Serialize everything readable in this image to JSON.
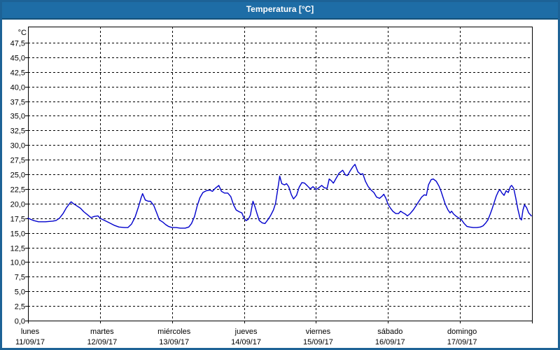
{
  "title": "Temperatura [°C]",
  "theme": {
    "titlebar_bg": "#1e6da6",
    "titlebar_edge": "#155179",
    "window_border": "#1d6296",
    "background": "#ffffff",
    "plot_border": "#000000",
    "grid_color": "#000000",
    "text_color": "#000000",
    "line_color": "#0000cc"
  },
  "chart_data": {
    "type": "line",
    "title": "Temperatura [°C]",
    "ylabel_unit": "°C",
    "ylim": [
      0,
      50
    ],
    "ytick_step": 2.5,
    "ytick_labels": [
      "0,0",
      "2,5",
      "5,0",
      "7,5",
      "10,0",
      "12,5",
      "15,0",
      "17,5",
      "20,0",
      "22,5",
      "25,0",
      "27,5",
      "30,0",
      "32,5",
      "35,0",
      "37,5",
      "40,0",
      "42,5",
      "45,0",
      "47,5"
    ],
    "grid": true,
    "legend": "none",
    "x_unit": "hours_from_monday_00h",
    "xlim": [
      0,
      168
    ],
    "days": [
      {
        "name": "lunes",
        "date": "11/09/17"
      },
      {
        "name": "martes",
        "date": "12/09/17"
      },
      {
        "name": "miércoles",
        "date": "13/09/17"
      },
      {
        "name": "jueves",
        "date": "14/09/17"
      },
      {
        "name": "viernes",
        "date": "15/09/17"
      },
      {
        "name": "sábado",
        "date": "16/09/17"
      },
      {
        "name": "domingo",
        "date": "17/09/17"
      }
    ],
    "series": [
      {
        "name": "Temperatura",
        "color": "#0000cc",
        "points": [
          [
            0,
            17.5
          ],
          [
            1.9,
            17.1
          ],
          [
            3.5,
            16.9
          ],
          [
            5.8,
            16.9
          ],
          [
            8.2,
            17.0
          ],
          [
            9.3,
            17.1
          ],
          [
            10.5,
            17.5
          ],
          [
            11.7,
            18.3
          ],
          [
            12.8,
            19.3
          ],
          [
            14.0,
            20.1
          ],
          [
            14.4,
            20.3
          ],
          [
            15.1,
            20.0
          ],
          [
            16.3,
            19.6
          ],
          [
            17.5,
            19.2
          ],
          [
            18.6,
            18.6
          ],
          [
            19.8,
            18.1
          ],
          [
            21.0,
            17.6
          ],
          [
            22.1,
            17.8
          ],
          [
            23.3,
            17.9
          ],
          [
            24.0,
            17.5
          ],
          [
            25.2,
            17.2
          ],
          [
            26.8,
            16.8
          ],
          [
            28.7,
            16.3
          ],
          [
            30.3,
            16.0
          ],
          [
            32.2,
            15.9
          ],
          [
            33.3,
            15.9
          ],
          [
            34.5,
            16.5
          ],
          [
            35.7,
            17.7
          ],
          [
            36.8,
            19.4
          ],
          [
            37.7,
            21.0
          ],
          [
            38.2,
            21.7
          ],
          [
            39.1,
            20.6
          ],
          [
            40.1,
            20.4
          ],
          [
            40.8,
            20.4
          ],
          [
            41.9,
            19.7
          ],
          [
            42.9,
            18.4
          ],
          [
            43.8,
            17.2
          ],
          [
            45.0,
            16.8
          ],
          [
            45.9,
            16.4
          ],
          [
            46.8,
            16.1
          ],
          [
            48.0,
            15.9
          ],
          [
            49.4,
            15.9
          ],
          [
            50.8,
            15.8
          ],
          [
            52.4,
            15.8
          ],
          [
            53.6,
            16.0
          ],
          [
            54.5,
            16.6
          ],
          [
            55.5,
            17.8
          ],
          [
            56.4,
            19.6
          ],
          [
            57.3,
            21.0
          ],
          [
            58.3,
            21.9
          ],
          [
            59.4,
            22.2
          ],
          [
            60.6,
            22.3
          ],
          [
            61.5,
            22.1
          ],
          [
            62.4,
            22.6
          ],
          [
            63.6,
            23.1
          ],
          [
            64.5,
            22.1
          ],
          [
            65.5,
            21.8
          ],
          [
            66.6,
            21.8
          ],
          [
            67.6,
            21.2
          ],
          [
            68.5,
            19.8
          ],
          [
            69.4,
            18.9
          ],
          [
            70.4,
            18.6
          ],
          [
            71.3,
            18.4
          ],
          [
            72.0,
            17.5
          ],
          [
            72.7,
            17.1
          ],
          [
            73.4,
            17.3
          ],
          [
            74.1,
            18.0
          ],
          [
            75.0,
            20.4
          ],
          [
            75.7,
            19.4
          ],
          [
            76.4,
            18.2
          ],
          [
            77.1,
            17.1
          ],
          [
            78.1,
            16.7
          ],
          [
            79.0,
            16.6
          ],
          [
            79.9,
            17.2
          ],
          [
            80.8,
            17.9
          ],
          [
            81.8,
            18.9
          ],
          [
            82.5,
            20.0
          ],
          [
            83.2,
            22.3
          ],
          [
            83.9,
            24.7
          ],
          [
            84.6,
            23.4
          ],
          [
            85.5,
            23.2
          ],
          [
            86.2,
            23.4
          ],
          [
            86.9,
            22.9
          ],
          [
            87.8,
            21.5
          ],
          [
            88.5,
            20.8
          ],
          [
            89.5,
            21.4
          ],
          [
            90.4,
            22.8
          ],
          [
            91.3,
            23.6
          ],
          [
            92.2,
            23.5
          ],
          [
            93.2,
            23.0
          ],
          [
            94.1,
            22.5
          ],
          [
            95.0,
            22.9
          ],
          [
            96.0,
            22.4
          ],
          [
            96.9,
            22.7
          ],
          [
            97.9,
            23.1
          ],
          [
            98.8,
            22.7
          ],
          [
            99.7,
            22.6
          ],
          [
            100.4,
            24.2
          ],
          [
            101.1,
            23.9
          ],
          [
            101.8,
            23.5
          ],
          [
            102.7,
            24.3
          ],
          [
            103.7,
            25.2
          ],
          [
            104.9,
            25.7
          ],
          [
            105.8,
            24.9
          ],
          [
            106.5,
            24.8
          ],
          [
            107.4,
            25.6
          ],
          [
            108.3,
            26.3
          ],
          [
            109.0,
            26.7
          ],
          [
            110.0,
            25.4
          ],
          [
            110.9,
            25.0
          ],
          [
            111.6,
            25.1
          ],
          [
            112.5,
            23.8
          ],
          [
            113.4,
            22.9
          ],
          [
            114.4,
            22.3
          ],
          [
            115.3,
            21.9
          ],
          [
            116.2,
            21.1
          ],
          [
            117.2,
            20.9
          ],
          [
            118.1,
            21.3
          ],
          [
            118.6,
            21.6
          ],
          [
            119.3,
            20.9
          ],
          [
            120.0,
            19.9
          ],
          [
            120.7,
            19.3
          ],
          [
            121.6,
            18.7
          ],
          [
            122.6,
            18.3
          ],
          [
            123.5,
            18.3
          ],
          [
            124.2,
            18.7
          ],
          [
            125.1,
            18.4
          ],
          [
            125.8,
            18.2
          ],
          [
            126.5,
            17.9
          ],
          [
            127.4,
            18.3
          ],
          [
            128.4,
            18.9
          ],
          [
            129.3,
            19.6
          ],
          [
            130.2,
            20.3
          ],
          [
            131.2,
            21.1
          ],
          [
            132.1,
            21.5
          ],
          [
            132.8,
            21.4
          ],
          [
            133.5,
            23.2
          ],
          [
            134.4,
            24.1
          ],
          [
            135.1,
            24.2
          ],
          [
            136.1,
            23.8
          ],
          [
            137.0,
            23.0
          ],
          [
            137.7,
            22.1
          ],
          [
            138.4,
            21.0
          ],
          [
            139.1,
            19.9
          ],
          [
            140.0,
            18.9
          ],
          [
            140.7,
            18.4
          ],
          [
            141.2,
            18.7
          ],
          [
            141.9,
            18.2
          ],
          [
            142.8,
            17.8
          ],
          [
            144.0,
            17.4
          ],
          [
            144.7,
            17.1
          ],
          [
            145.4,
            16.6
          ],
          [
            146.3,
            16.1
          ],
          [
            147.2,
            16.0
          ],
          [
            148.4,
            15.9
          ],
          [
            149.6,
            15.9
          ],
          [
            150.8,
            16.0
          ],
          [
            151.7,
            16.2
          ],
          [
            152.6,
            16.7
          ],
          [
            153.3,
            17.2
          ],
          [
            154.0,
            18.1
          ],
          [
            154.7,
            19.1
          ],
          [
            155.4,
            20.2
          ],
          [
            156.1,
            21.3
          ],
          [
            156.8,
            22.1
          ],
          [
            157.3,
            22.4
          ],
          [
            158.0,
            21.8
          ],
          [
            158.7,
            21.4
          ],
          [
            159.4,
            22.2
          ],
          [
            160.1,
            21.9
          ],
          [
            160.8,
            22.9
          ],
          [
            161.2,
            23.1
          ],
          [
            161.9,
            22.6
          ],
          [
            162.6,
            20.9
          ],
          [
            163.3,
            19.0
          ],
          [
            164.0,
            17.5
          ],
          [
            164.5,
            17.2
          ],
          [
            165.0,
            18.9
          ],
          [
            165.5,
            19.8
          ],
          [
            166.2,
            19.3
          ],
          [
            166.9,
            18.4
          ],
          [
            167.8,
            17.9
          ]
        ]
      }
    ]
  }
}
